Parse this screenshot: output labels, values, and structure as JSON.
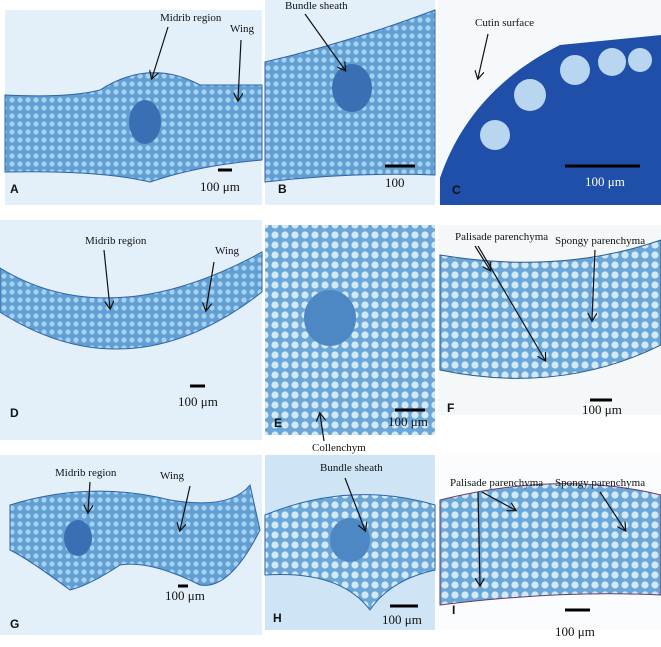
{
  "panels": [
    {
      "label": "A",
      "annotations": [
        "Midrib region",
        "Wing"
      ],
      "scale_bar": "100 μm"
    },
    {
      "label": "B",
      "annotations": [
        "Bundle sheath"
      ],
      "scale_bar": "100"
    },
    {
      "label": "C",
      "annotations": [
        "Cutin surface"
      ],
      "scale_bar": "100 μm"
    },
    {
      "label": "D",
      "annotations": [
        "Midrib region",
        "Wing"
      ],
      "scale_bar": "100 μm"
    },
    {
      "label": "E",
      "annotations": [
        "Collenchym"
      ],
      "scale_bar": "100 μm"
    },
    {
      "label": "F",
      "annotations": [
        "Palisade parenchyma",
        "Spongy parenchyma"
      ],
      "scale_bar": "100 μm"
    },
    {
      "label": "G",
      "annotations": [
        "Midrib region",
        "Wing"
      ],
      "scale_bar": "100 μm"
    },
    {
      "label": "H",
      "annotations": [
        "Bundle sheath"
      ],
      "scale_bar": "100 μm"
    },
    {
      "label": "I",
      "annotations": [
        "Palisade parenchyma",
        "Spongy parenchyma"
      ],
      "scale_bar": "100 μm"
    }
  ]
}
